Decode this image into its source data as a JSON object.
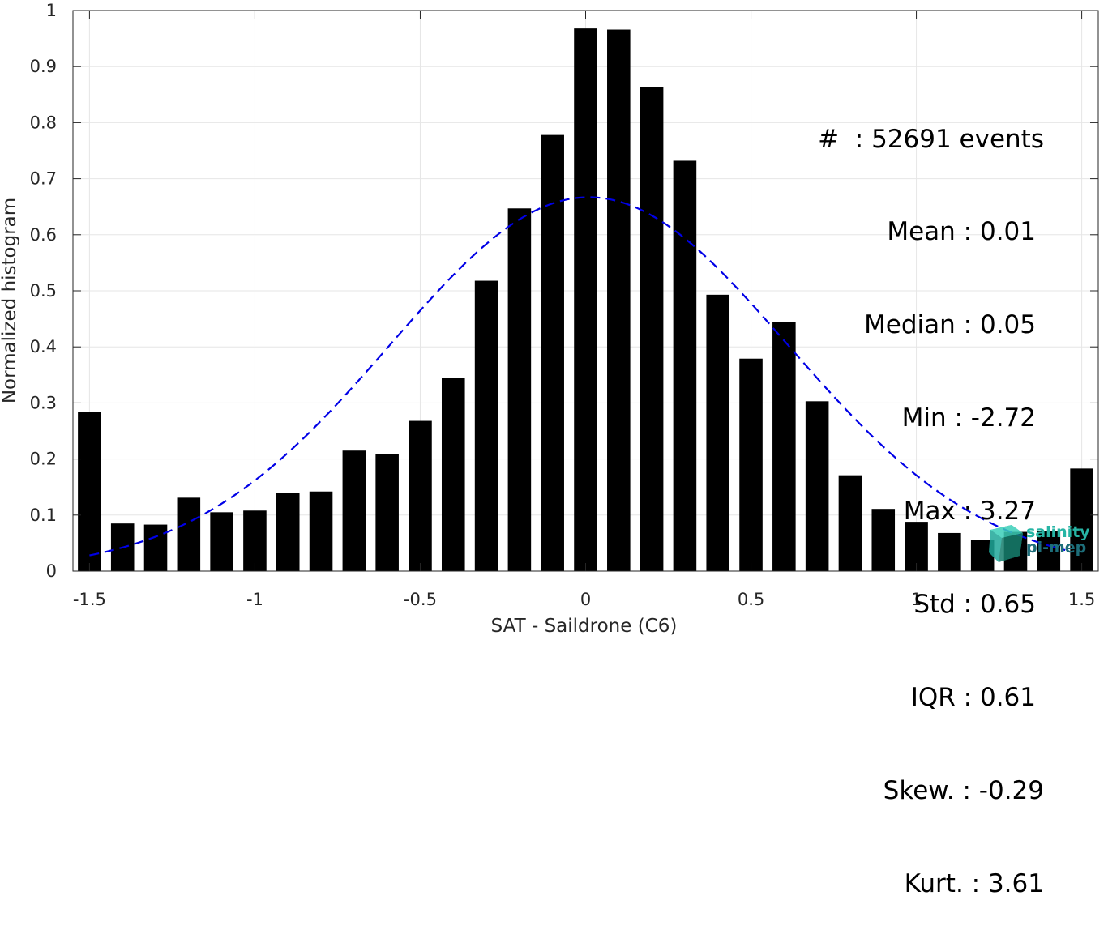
{
  "chart_data": {
    "type": "bar",
    "xlabel": "SAT - Saildrone (C6)",
    "ylabel": "Normalized histogram",
    "xlim": [
      -1.55,
      1.55
    ],
    "ylim": [
      0,
      1
    ],
    "grid": true,
    "xticks": [
      -1.5,
      -1,
      -0.5,
      0,
      0.5,
      1,
      1.5
    ],
    "xtick_labels": [
      "-1.5",
      "-1",
      "-0.5",
      "0",
      "0.5",
      "1",
      "1.5"
    ],
    "yticks": [
      0,
      0.1,
      0.2,
      0.3,
      0.4,
      0.5,
      0.6,
      0.7,
      0.8,
      0.9,
      1
    ],
    "ytick_labels": [
      "0",
      "0.1",
      "0.2",
      "0.3",
      "0.4",
      "0.5",
      "0.6",
      "0.7",
      "0.8",
      "0.9",
      "1"
    ],
    "bar_width": 0.07,
    "bar_color": "#000000",
    "x": [
      -1.5,
      -1.4,
      -1.3,
      -1.2,
      -1.1,
      -1.0,
      -0.9,
      -0.8,
      -0.7,
      -0.6,
      -0.5,
      -0.4,
      -0.3,
      -0.2,
      -0.1,
      0.0,
      0.1,
      0.2,
      0.3,
      0.4,
      0.5,
      0.6,
      0.7,
      0.8,
      0.9,
      1.0,
      1.1,
      1.2,
      1.3,
      1.4,
      1.5
    ],
    "values": [
      0.284,
      0.085,
      0.083,
      0.131,
      0.105,
      0.108,
      0.14,
      0.142,
      0.215,
      0.209,
      0.268,
      0.345,
      0.518,
      0.647,
      0.778,
      0.968,
      0.966,
      0.863,
      0.732,
      0.493,
      0.379,
      0.445,
      0.303,
      0.171,
      0.111,
      0.088,
      0.068,
      0.056,
      0.07,
      0.072,
      0.183
    ],
    "fit_curve": {
      "style": "dashed",
      "color": "#0000e6",
      "mean": 0.01,
      "std": 0.6,
      "peak": 0.667,
      "x_range": [
        -1.5,
        1.45
      ]
    },
    "annotations": [
      "#  : 52691 events",
      "Mean : 0.01",
      "Median : 0.05",
      "Min : -2.72",
      "Max : 3.27",
      "Std : 0.65",
      "IQR : 0.61",
      "Skew. : -0.29",
      "Kurt. : 3.61"
    ]
  },
  "logo": {
    "line1": "salinity",
    "line2": "pi-mep",
    "color_light": "#27b5a5",
    "color_dark": "#1d6e7a"
  }
}
